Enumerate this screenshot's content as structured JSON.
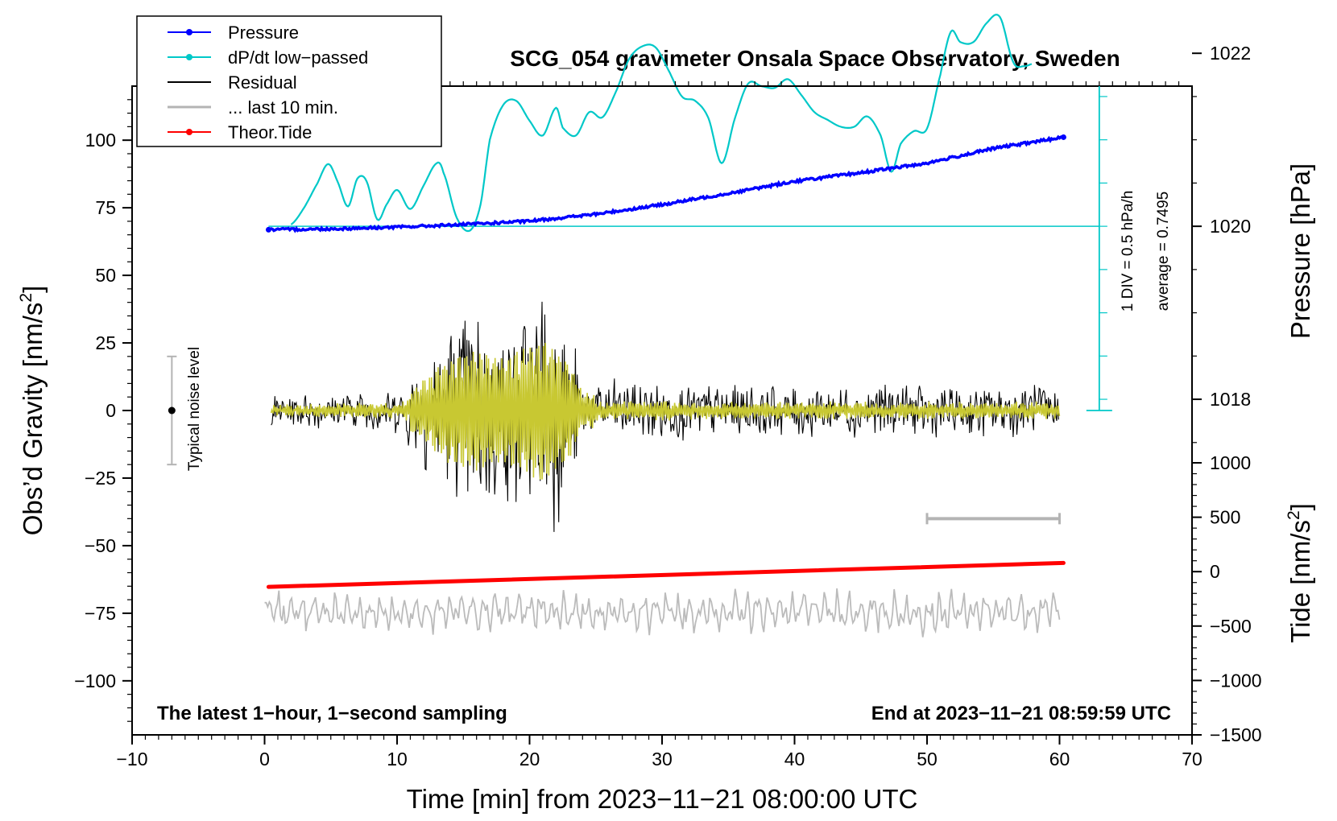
{
  "chart_data": {
    "type": "line",
    "title": "SCG_054 gravimeter Onsala Space Observatory, Sweden",
    "xlabel": "Time [min] from 2023−11−21 08:00:00 UTC",
    "ylabel_left": "Obs’d Gravity [nm/s",
    "ylabel_left_sup": "2",
    "ylabel_left_end": "]",
    "ylabel_right_pressure": "Pressure [hPa]",
    "ylabel_right_tide": "Tide [nm/s",
    "ylabel_right_tide_sup": "2",
    "ylabel_right_tide_end": "]",
    "xlim": [
      -10,
      70
    ],
    "ylim_gravity": [
      -120,
      120
    ],
    "pressure_range": [
      1016,
      1023.5
    ],
    "tide_range": [
      -1500,
      1000
    ],
    "x_ticks": [
      -10,
      0,
      10,
      20,
      30,
      40,
      50,
      60,
      70
    ],
    "x_tick_labels": [
      "−10",
      "0",
      "10",
      "20",
      "30",
      "40",
      "50",
      "60",
      "70"
    ],
    "gravity_ticks": [
      100,
      75,
      50,
      25,
      0,
      -25,
      -50,
      -75,
      -100
    ],
    "gravity_tick_labels": [
      "100",
      "75",
      "50",
      "25",
      "0",
      "−25",
      "−50",
      "−75",
      "−100"
    ],
    "pressure_ticks": [
      1022,
      1020,
      1018
    ],
    "pressure_tick_labels": [
      "1022",
      "1020",
      "1018"
    ],
    "tide_ticks": [
      1000,
      500,
      0,
      -500,
      -1000,
      -1500
    ],
    "tide_tick_labels": [
      "1000",
      "500",
      "0",
      "−500",
      "−1000",
      "−1500"
    ],
    "legend": [
      {
        "name": "Pressure",
        "color": "#0000ff",
        "marker": true
      },
      {
        "name": "dP/dt low−passed",
        "color": "#00c8c8",
        "marker": true
      },
      {
        "name": "Residual",
        "color": "#000000",
        "marker": false
      },
      {
        "name": "... last 10 min.",
        "color": "#b4b4b4",
        "marker": false
      },
      {
        "name": "Theor.Tide",
        "color": "#ff0000",
        "marker": true
      }
    ],
    "series": [
      {
        "name": "Pressure",
        "unit": "hPa",
        "x": [
          0.3,
          5,
          10,
          15,
          20,
          25,
          30,
          35,
          40,
          45,
          50,
          55,
          60.3
        ],
        "values": [
          1019.96,
          1019.97,
          1019.99,
          1020.02,
          1020.06,
          1020.14,
          1020.25,
          1020.38,
          1020.52,
          1020.62,
          1020.73,
          1020.9,
          1021.03
        ]
      },
      {
        "name": "dP/dt low-passed",
        "unit": "hPa/h",
        "baseline": 1020,
        "x": [
          2,
          3,
          4,
          4.8,
          5.5,
          6.3,
          7,
          7.7,
          8.5,
          9.2,
          10,
          11,
          12,
          13,
          13.5,
          14.5,
          15.5,
          16.3,
          17,
          18,
          19,
          20,
          21,
          22,
          22.5,
          23.5,
          24.5,
          25.5,
          26.5,
          27.5,
          28.5,
          29.5,
          30.5,
          31.5,
          32.5,
          33.5,
          34.5,
          35.5,
          36.5,
          37.5,
          38.5,
          39.5,
          40.5,
          41.5,
          42.5,
          43.5,
          44.5,
          45.5,
          46.5,
          47.3,
          48,
          49,
          50,
          51,
          51.8,
          52.5,
          53.5,
          54.5,
          55.5,
          56.5,
          57.3,
          58
        ],
        "values": [
          0.02,
          0.22,
          0.5,
          0.72,
          0.52,
          0.23,
          0.55,
          0.52,
          0.08,
          0.25,
          0.42,
          0.2,
          0.47,
          0.73,
          0.62,
          0.1,
          -0.05,
          0.25,
          1.0,
          1.4,
          1.45,
          1.22,
          1.05,
          1.37,
          1.14,
          1.05,
          1.32,
          1.26,
          1.55,
          1.93,
          2.08,
          2.07,
          1.8,
          1.5,
          1.45,
          1.25,
          0.73,
          1.25,
          1.65,
          1.62,
          1.6,
          1.7,
          1.52,
          1.32,
          1.23,
          1.15,
          1.15,
          1.27,
          1.05,
          0.63,
          0.95,
          1.1,
          1.13,
          1.75,
          2.25,
          2.13,
          2.13,
          2.35,
          2.42,
          1.9,
          1.85,
          1.88
        ]
      },
      {
        "name": "Residual",
        "unit": "nm/s²",
        "x": [
          0.5,
          5,
          10,
          12,
          14,
          16,
          18,
          20,
          21,
          22,
          23,
          24,
          27,
          30,
          35,
          40,
          45,
          50,
          55,
          60
        ],
        "values": [
          0,
          0,
          0,
          30,
          -45,
          45,
          -35,
          45,
          -52,
          45,
          -45,
          15,
          -5,
          5,
          -5,
          4,
          4,
          -5,
          5,
          0
        ],
        "envelope": [
          6,
          7,
          9,
          22,
          38,
          44,
          38,
          46,
          52,
          44,
          36,
          12,
          12,
          12,
          10,
          10,
          10,
          10,
          10,
          10
        ]
      },
      {
        "name": "... last 10 min.",
        "unit": "nm/s²",
        "x": [
          0,
          10,
          20,
          30,
          40,
          50,
          60
        ],
        "values": [
          -74,
          -75,
          -74,
          -75,
          -74,
          -75,
          -74
        ],
        "amplitude": [
          6,
          6,
          6,
          6,
          6,
          6,
          6
        ]
      },
      {
        "name": "Theor.Tide",
        "unit": "nm/s²",
        "x": [
          0.3,
          60.3
        ],
        "values": [
          -140,
          80
        ]
      }
    ],
    "noise_level": {
      "label": "Typical noise level",
      "x": -7,
      "center": 0,
      "low": -20,
      "high": 20
    },
    "pressure_scale": {
      "label1": "1 DIV = 0.5 hPa/h",
      "label2": "average = 0.7495"
    },
    "scale_bar": {
      "x_start": 50,
      "x_end": 60,
      "value": -40
    },
    "annotation_left": "The latest 1−hour, 1−second sampling",
    "annotation_right": "End at 2023−11−21 08:59:59 UTC"
  }
}
